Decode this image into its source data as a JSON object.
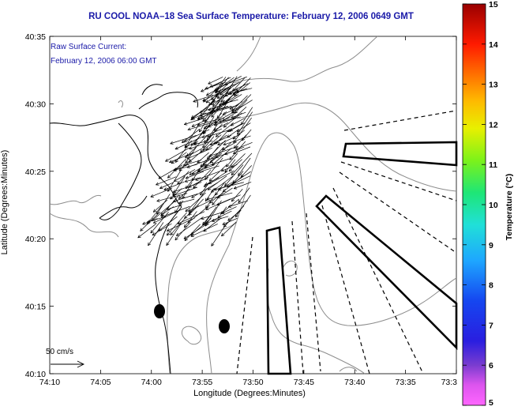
{
  "title": "RU COOL  NOAA–18  Sea Surface Temperature:  February 12, 2006 0649 GMT",
  "annotation": {
    "line1": "Raw Surface Current:",
    "line2": "February 12, 2006 06:00 GMT"
  },
  "scale_label": "50 cm/s",
  "axes": {
    "xlabel": "Longitude (Degrees:Minutes)",
    "ylabel": "Latitude (Degrees:Minutes)",
    "xticks": [
      "74:10",
      "74:05",
      "74:00",
      "73:55",
      "73:50",
      "73:45",
      "73:40",
      "73:35",
      "73:3"
    ],
    "yticks": [
      "40:35",
      "40:30",
      "40:25",
      "40:20",
      "40:15",
      "40:10"
    ]
  },
  "colorbar": {
    "label": "Temperature (°C)",
    "ticks": [
      "15",
      "14",
      "13",
      "12",
      "11",
      "10",
      "9",
      "8",
      "7",
      "6",
      "5"
    ],
    "min": 5,
    "max": 15
  },
  "colors": {
    "title": "#1a1aa8",
    "annotation": "#1a1aa8",
    "coast": "#000000",
    "bathymetry": "#8c8c8c"
  }
}
